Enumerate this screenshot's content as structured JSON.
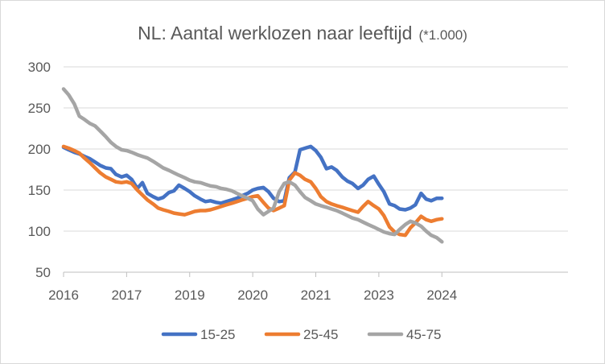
{
  "chart_data": {
    "type": "line",
    "title": "NL: Aantal werklozen naar leeftijd",
    "title_suffix": "(*1.000)",
    "xlabel": "",
    "ylabel": "",
    "ylim": [
      50,
      300
    ],
    "yticks": [
      50,
      100,
      150,
      200,
      250,
      300
    ],
    "xlim": [
      2016.0,
      2024.0
    ],
    "xticks": [
      {
        "value": 2016.0,
        "label": "2016"
      },
      {
        "value": 2017.0,
        "label": "2017"
      },
      {
        "value": 2018.0,
        "label": "2019"
      },
      {
        "value": 2019.0,
        "label": "2020"
      },
      {
        "value": 2020.0,
        "label": "2021"
      },
      {
        "value": 2021.0,
        "label": "2023"
      },
      {
        "value": 2022.0,
        "label": "2024"
      }
    ],
    "grid": "horizontal",
    "legend_position": "bottom",
    "series": [
      {
        "name": "15-25",
        "color": "#4472c4",
        "x": [
          2016.0,
          2016.08,
          2016.17,
          2016.25,
          2016.33,
          2016.42,
          2016.5,
          2016.58,
          2016.67,
          2016.75,
          2016.83,
          2016.92,
          2017.0,
          2017.08,
          2017.17,
          2017.25,
          2017.33,
          2017.42,
          2017.5,
          2017.58,
          2017.67,
          2017.75,
          2017.83,
          2017.92,
          2018.0,
          2018.08,
          2018.17,
          2018.25,
          2018.33,
          2018.42,
          2018.5,
          2018.58,
          2018.67,
          2018.75,
          2018.83,
          2018.92,
          2019.0,
          2019.08,
          2019.17,
          2019.25,
          2019.33,
          2019.42,
          2019.5,
          2019.58,
          2019.67,
          2019.75,
          2019.83,
          2019.92,
          2020.0,
          2020.08,
          2020.17,
          2020.25,
          2020.33,
          2020.42,
          2020.5,
          2020.58,
          2020.67,
          2020.75,
          2020.83,
          2020.92,
          2021.0,
          2021.08,
          2021.17,
          2021.25,
          2021.33,
          2021.42,
          2021.5,
          2021.58,
          2021.67,
          2021.75,
          2021.83,
          2021.92,
          2022.0
        ],
        "y": [
          202,
          199,
          196,
          194,
          191,
          188,
          184,
          180,
          177,
          176,
          169,
          166,
          168,
          163,
          152,
          159,
          146,
          142,
          139,
          141,
          147,
          149,
          156,
          152,
          148,
          143,
          139,
          136,
          137,
          135,
          134,
          136,
          138,
          140,
          143,
          146,
          150,
          152,
          153,
          148,
          140,
          136,
          137,
          165,
          172,
          199,
          201,
          203,
          198,
          190,
          176,
          178,
          174,
          166,
          161,
          158,
          152,
          156,
          163,
          167,
          157,
          148,
          133,
          131,
          127,
          126,
          128,
          132,
          146,
          139,
          137,
          140,
          140
        ]
      },
      {
        "name": "25-45",
        "color": "#ed7d31",
        "x": [
          2016.0,
          2016.08,
          2016.17,
          2016.25,
          2016.33,
          2016.42,
          2016.5,
          2016.58,
          2016.67,
          2016.75,
          2016.83,
          2016.92,
          2017.0,
          2017.08,
          2017.17,
          2017.25,
          2017.33,
          2017.42,
          2017.5,
          2017.58,
          2017.67,
          2017.75,
          2017.83,
          2017.92,
          2018.0,
          2018.08,
          2018.17,
          2018.25,
          2018.33,
          2018.42,
          2018.5,
          2018.58,
          2018.67,
          2018.75,
          2018.83,
          2018.92,
          2019.0,
          2019.08,
          2019.17,
          2019.25,
          2019.33,
          2019.42,
          2019.5,
          2019.58,
          2019.67,
          2019.75,
          2019.83,
          2019.92,
          2020.0,
          2020.08,
          2020.17,
          2020.25,
          2020.33,
          2020.42,
          2020.5,
          2020.58,
          2020.67,
          2020.75,
          2020.83,
          2020.92,
          2021.0,
          2021.08,
          2021.17,
          2021.25,
          2021.33,
          2021.42,
          2021.5,
          2021.58,
          2021.67,
          2021.75,
          2021.83,
          2021.92,
          2022.0
        ],
        "y": [
          203,
          201,
          198,
          195,
          189,
          183,
          177,
          171,
          166,
          163,
          160,
          159,
          160,
          158,
          150,
          144,
          138,
          133,
          128,
          126,
          124,
          122,
          121,
          120,
          122,
          124,
          125,
          125,
          126,
          128,
          130,
          132,
          134,
          136,
          138,
          140,
          142,
          143,
          135,
          128,
          125,
          128,
          131,
          162,
          171,
          168,
          163,
          160,
          152,
          142,
          136,
          133,
          131,
          129,
          127,
          125,
          123,
          130,
          136,
          131,
          127,
          119,
          105,
          99,
          96,
          95,
          104,
          110,
          118,
          114,
          112,
          114,
          115
        ]
      },
      {
        "name": "45-75",
        "color": "#a5a5a5",
        "x": [
          2016.0,
          2016.08,
          2016.17,
          2016.25,
          2016.33,
          2016.42,
          2016.5,
          2016.58,
          2016.67,
          2016.75,
          2016.83,
          2016.92,
          2017.0,
          2017.08,
          2017.17,
          2017.25,
          2017.33,
          2017.42,
          2017.5,
          2017.58,
          2017.67,
          2017.75,
          2017.83,
          2017.92,
          2018.0,
          2018.08,
          2018.17,
          2018.25,
          2018.33,
          2018.42,
          2018.5,
          2018.58,
          2018.67,
          2018.75,
          2018.83,
          2018.92,
          2019.0,
          2019.08,
          2019.17,
          2019.25,
          2019.33,
          2019.42,
          2019.5,
          2019.58,
          2019.67,
          2019.75,
          2019.83,
          2019.92,
          2020.0,
          2020.08,
          2020.17,
          2020.25,
          2020.33,
          2020.42,
          2020.5,
          2020.58,
          2020.67,
          2020.75,
          2020.83,
          2020.92,
          2021.0,
          2021.08,
          2021.17,
          2021.25,
          2021.33,
          2021.42,
          2021.5,
          2021.58,
          2021.67,
          2021.75,
          2021.83,
          2021.92,
          2022.0
        ],
        "y": [
          273,
          266,
          255,
          240,
          236,
          231,
          228,
          222,
          215,
          208,
          203,
          199,
          198,
          196,
          193,
          191,
          189,
          185,
          181,
          177,
          174,
          171,
          168,
          165,
          162,
          160,
          159,
          157,
          155,
          154,
          152,
          151,
          149,
          146,
          143,
          140,
          137,
          127,
          120,
          124,
          128,
          148,
          158,
          160,
          156,
          148,
          141,
          137,
          133,
          131,
          129,
          127,
          125,
          122,
          119,
          116,
          114,
          111,
          108,
          105,
          102,
          99,
          97,
          96,
          102,
          108,
          112,
          110,
          106,
          100,
          95,
          92,
          87
        ]
      }
    ]
  }
}
